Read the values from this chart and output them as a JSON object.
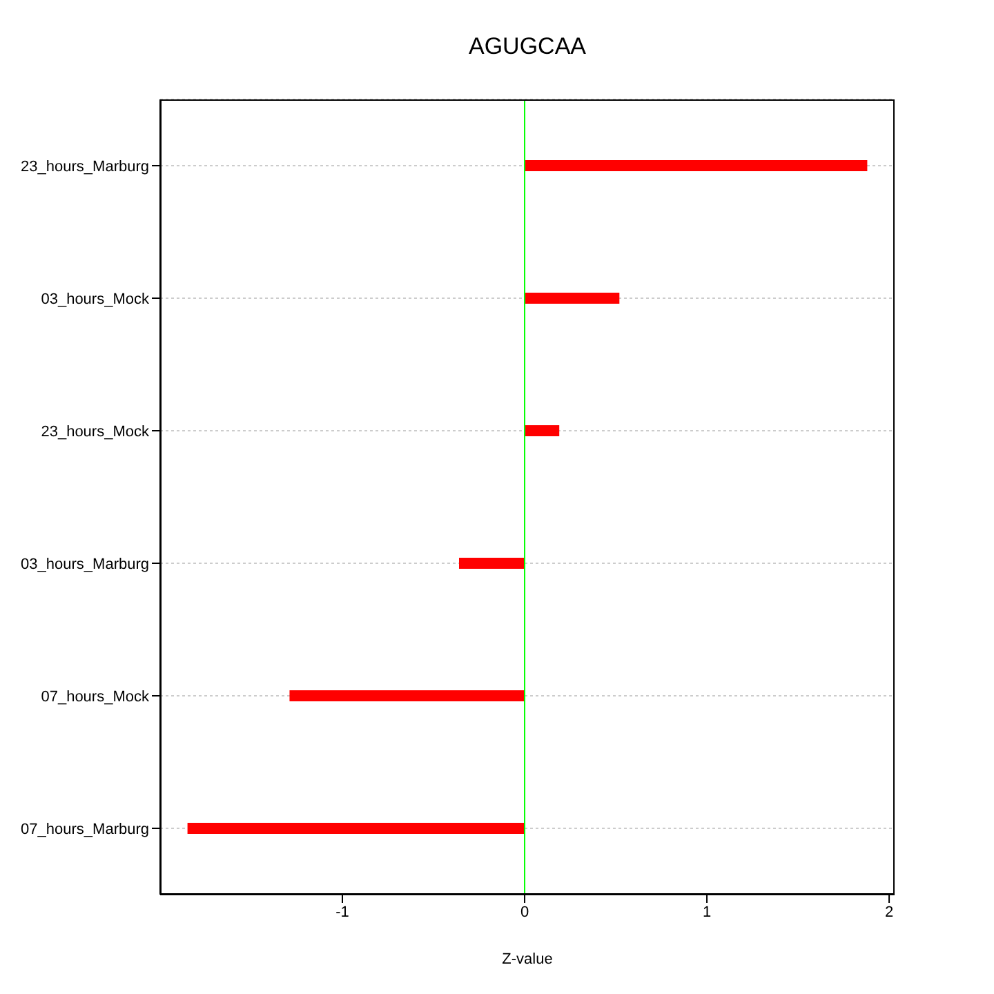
{
  "chart_data": {
    "type": "bar",
    "orientation": "horizontal",
    "title": "AGUGCAA",
    "xlabel": "Z-value",
    "categories": [
      "23_hours_Marburg",
      "03_hours_Mock",
      "23_hours_Mock",
      "03_hours_Marburg",
      "07_hours_Mock",
      "07_hours_Marburg"
    ],
    "values": [
      1.88,
      0.52,
      0.19,
      -0.36,
      -1.29,
      -1.85
    ],
    "color": "#ff0000",
    "xlim": [
      -2,
      2.03
    ],
    "xticks": [
      -1,
      0,
      1,
      2
    ],
    "grid": "y",
    "ref_lines": [
      {
        "axis": "x",
        "value": 0,
        "color": "#00ff00"
      }
    ]
  }
}
